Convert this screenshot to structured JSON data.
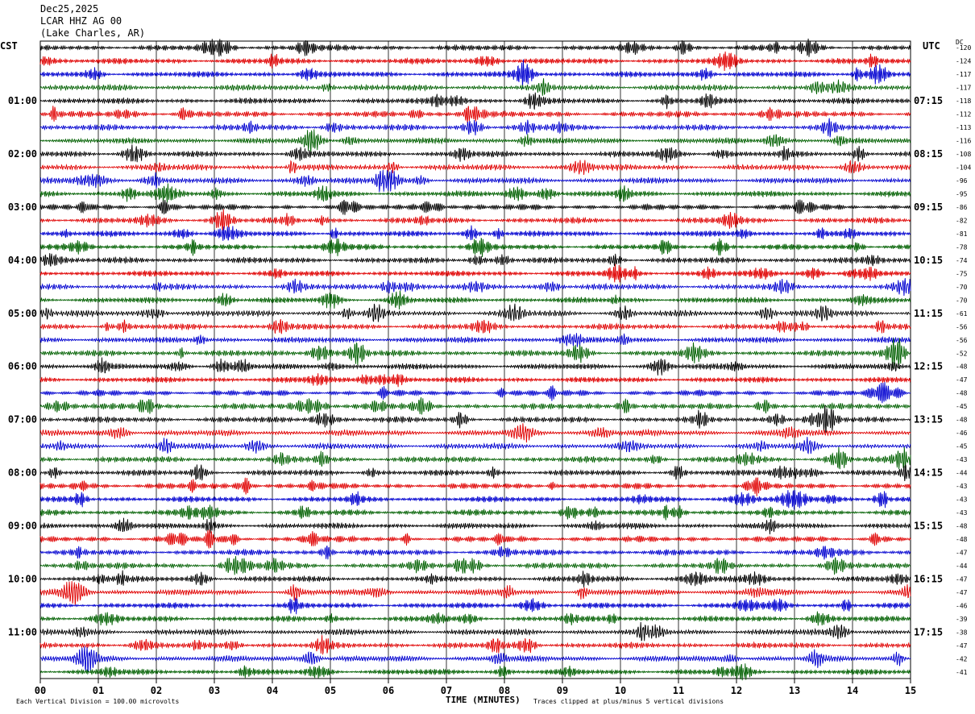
{
  "header": {
    "date": "Dec25,2025",
    "station": "LCAR HHZ AG 00",
    "location": "(Lake Charles, AR)"
  },
  "left_axis_title": "CST",
  "right_axis_title": "UTC",
  "dc_title": "DC",
  "footer": {
    "scale_note": "Each Vertical Division = 100.00 microvolts",
    "xlabel": "TIME (MINUTES)",
    "clip_note": "Traces clipped at plus/minus 5 vertical divisions"
  },
  "chart_data": {
    "type": "line",
    "title": "LCAR HHZ AG 00",
    "xlabel": "TIME (MINUTES)",
    "xlim": [
      0,
      15
    ],
    "x_ticks": [
      "00",
      "01",
      "02",
      "03",
      "04",
      "05",
      "06",
      "07",
      "08",
      "09",
      "10",
      "11",
      "12",
      "13",
      "14",
      "15"
    ],
    "row_count": 48,
    "trace_colors": [
      "#000000",
      "#e00000",
      "#0000d0",
      "#006000"
    ],
    "cst_labels": [
      {
        "row": 4,
        "label": "01:00"
      },
      {
        "row": 8,
        "label": "02:00"
      },
      {
        "row": 12,
        "label": "03:00"
      },
      {
        "row": 16,
        "label": "04:00"
      },
      {
        "row": 20,
        "label": "05:00"
      },
      {
        "row": 24,
        "label": "06:00"
      },
      {
        "row": 28,
        "label": "07:00"
      },
      {
        "row": 32,
        "label": "08:00"
      },
      {
        "row": 36,
        "label": "09:00"
      },
      {
        "row": 40,
        "label": "10:00"
      },
      {
        "row": 44,
        "label": "11:00"
      }
    ],
    "utc_labels": [
      {
        "row": 4,
        "label": "07:15"
      },
      {
        "row": 8,
        "label": "08:15"
      },
      {
        "row": 12,
        "label": "09:15"
      },
      {
        "row": 16,
        "label": "10:15"
      },
      {
        "row": 20,
        "label": "11:15"
      },
      {
        "row": 24,
        "label": "12:15"
      },
      {
        "row": 28,
        "label": "13:15"
      },
      {
        "row": 32,
        "label": "14:15"
      },
      {
        "row": 36,
        "label": "15:15"
      },
      {
        "row": 40,
        "label": "16:15"
      },
      {
        "row": 44,
        "label": "17:15"
      }
    ],
    "dc_offsets": [
      "-120",
      "-124",
      "-117",
      "-117",
      "-118",
      "-112",
      "-113",
      "-116",
      "-108",
      "-104",
      "-96",
      "-95",
      "-86",
      "-82",
      "-81",
      "-78",
      "-74",
      "-75",
      "-70",
      "-70",
      "-61",
      "-56",
      "-56",
      "-52",
      "-48",
      "-47",
      "-48",
      "-45",
      "-48",
      "-46",
      "-45",
      "-43",
      "-44",
      "-43",
      "-43",
      "-43",
      "-48",
      "-48",
      "-47",
      "-44",
      "-47",
      "-47",
      "-46",
      "-39",
      "-38",
      "-47",
      "-42",
      "-41"
    ],
    "grid": true
  }
}
